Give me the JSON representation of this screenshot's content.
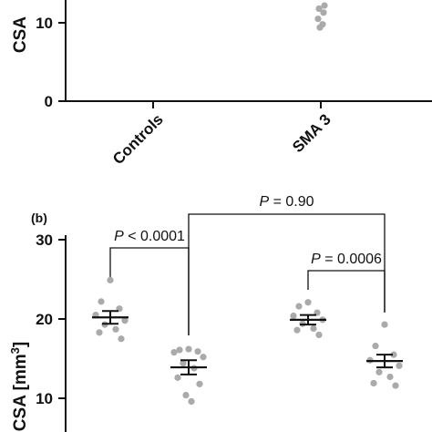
{
  "chart_data": [
    {
      "type": "scatter",
      "panel_label": "",
      "ylabel": "CSA",
      "yticks": [
        0,
        10
      ],
      "ylim_visible": [
        0,
        12.5
      ],
      "categories": [
        "Controls",
        "SMA 3"
      ],
      "series": [
        {
          "category": "SMA 3",
          "values": [
            12.2,
            11.8,
            11.3,
            10.5,
            9.8,
            9.4
          ]
        }
      ]
    },
    {
      "type": "scatter",
      "panel_label": "(b)",
      "ylabel": "CSA [mm",
      "ylabel_sup": "3",
      "ylabel_end": "]",
      "yticks": [
        10,
        20,
        30
      ],
      "ylim_visible": [
        7,
        30
      ],
      "groups": [
        {
          "values": [
            24.9,
            22.2,
            21.3,
            20.5,
            19.8,
            19.3,
            18.7,
            18.3,
            17.5
          ],
          "mean": 20.2,
          "sem": 0.8
        },
        {
          "values": [
            16.2,
            16.1,
            15.9,
            15.8,
            15.2,
            14.4,
            13.8,
            12.6,
            11.8,
            10.4,
            9.6
          ],
          "mean": 13.9,
          "sem": 0.9
        },
        {
          "values": [
            22.1,
            21.6,
            20.8,
            20.4,
            19.9,
            19.4,
            18.8,
            18.6,
            18.0
          ],
          "mean": 19.9,
          "sem": 0.6
        },
        {
          "values": [
            19.3,
            16.6,
            15.5,
            14.8,
            14.1,
            13.3,
            12.7,
            11.9,
            11.6
          ],
          "mean": 14.7,
          "sem": 0.8
        }
      ],
      "comparisons": [
        {
          "from_group": 0,
          "to_group": 1,
          "label": "P < 0.0001"
        },
        {
          "from_group": 1,
          "to_group": 3,
          "label": "P = 0.90"
        },
        {
          "from_group": 2,
          "to_group": 3,
          "label": "P = 0.0006"
        }
      ]
    }
  ]
}
